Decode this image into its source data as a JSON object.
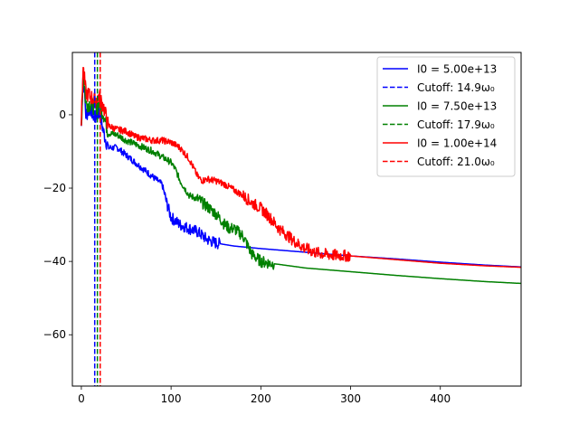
{
  "chart_data": {
    "type": "line",
    "title": "",
    "xlabel": "",
    "ylabel": "",
    "xlim": [
      -10,
      490
    ],
    "ylim": [
      -74,
      17
    ],
    "x_ticks": [
      0,
      100,
      200,
      300,
      400
    ],
    "x_tick_labels": [
      "0",
      "100",
      "200",
      "300",
      "400"
    ],
    "y_ticks": [
      0,
      -20,
      -40,
      -60
    ],
    "y_tick_labels": [
      "0",
      "−20",
      "−40",
      "−60"
    ],
    "grid": false,
    "legend_position": "upper right",
    "series": [
      {
        "name": "I0 = 5.00e+13",
        "color": "#0000ff",
        "style": "solid",
        "noise_until": 155,
        "x": [
          0,
          2,
          5,
          10,
          15,
          20,
          25,
          30,
          40,
          50,
          60,
          70,
          80,
          90,
          95,
          100,
          105,
          110,
          120,
          130,
          140,
          150,
          170,
          200,
          250,
          300,
          350,
          400,
          450,
          490
        ],
        "y": [
          -3,
          12,
          0,
          2,
          -1,
          1,
          -5,
          -9,
          -9,
          -11,
          -13,
          -15,
          -17,
          -19,
          -24,
          -28,
          -29,
          -30,
          -31,
          -32,
          -34,
          -35,
          -35.8,
          -36.5,
          -37.5,
          -38.5,
          -39.3,
          -40.2,
          -41,
          -41.5
        ]
      },
      {
        "name": "Cutoff: 14.9ω₀",
        "color": "#0000ff",
        "style": "dashed",
        "vline_x": 14.9
      },
      {
        "name": "I0 = 7.50e+13",
        "color": "#008000",
        "style": "solid",
        "noise_until": 215,
        "x": [
          0,
          2,
          5,
          10,
          15,
          20,
          25,
          30,
          40,
          50,
          60,
          70,
          80,
          90,
          100,
          105,
          110,
          115,
          120,
          130,
          140,
          150,
          160,
          165,
          170,
          180,
          190,
          200,
          210,
          220,
          250,
          300,
          350,
          400,
          450,
          490
        ],
        "y": [
          -3,
          12,
          3,
          3,
          2,
          3,
          0,
          -5,
          -5.5,
          -7,
          -8,
          -9,
          -10,
          -11.5,
          -13,
          -15,
          -18,
          -20,
          -22,
          -23,
          -25,
          -27,
          -30,
          -31,
          -31,
          -33,
          -38,
          -40,
          -40.5,
          -40.8,
          -41.8,
          -42.8,
          -43.8,
          -44.7,
          -45.5,
          -46
        ]
      },
      {
        "name": "Cutoff: 17.9ω₀",
        "color": "#008000",
        "style": "dashed",
        "vline_x": 17.9
      },
      {
        "name": "I0 = 1.00e+14",
        "color": "#ff0000",
        "style": "solid",
        "noise_until": 300,
        "x": [
          0,
          2,
          5,
          10,
          15,
          20,
          25,
          30,
          40,
          50,
          60,
          70,
          80,
          90,
          100,
          110,
          120,
          130,
          135,
          140,
          150,
          160,
          170,
          180,
          190,
          200,
          210,
          220,
          230,
          240,
          250,
          260,
          270,
          280,
          300,
          350,
          400,
          450,
          490
        ],
        "y": [
          -2,
          13,
          6,
          5,
          4,
          5,
          2,
          -3,
          -4,
          -4.5,
          -6,
          -6.5,
          -7,
          -7,
          -7.5,
          -9,
          -12,
          -17,
          -18,
          -17.5,
          -18,
          -19,
          -20.5,
          -22,
          -24,
          -25.5,
          -28,
          -31,
          -33,
          -35,
          -36.5,
          -37.5,
          -38,
          -38.3,
          -38.5,
          -39.5,
          -40.5,
          -41.2,
          -41.6
        ]
      },
      {
        "name": "Cutoff: 21.0ω₀",
        "color": "#ff0000",
        "style": "dashed",
        "vline_x": 21.0
      }
    ]
  }
}
